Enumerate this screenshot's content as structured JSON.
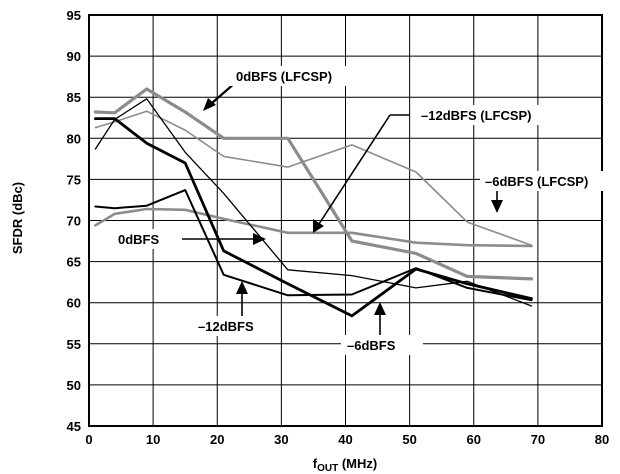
{
  "chart_data": {
    "type": "line",
    "xlabel": "f",
    "xlabel_sub": "OUT",
    "xlabel_unit": " (MHz)",
    "ylabel": "SFDR (dBc)",
    "xlim": [
      0,
      80
    ],
    "ylim": [
      45,
      95
    ],
    "xticks": [
      0,
      10,
      20,
      30,
      40,
      50,
      60,
      70,
      80
    ],
    "yticks": [
      45,
      50,
      55,
      60,
      65,
      70,
      75,
      80,
      85,
      90,
      95
    ],
    "grid": true,
    "series": [
      {
        "name": "0dBFS (LFCSP)",
        "color": "#8c8c8c",
        "width": 3.2,
        "x": [
          1,
          4,
          9,
          15,
          21,
          26,
          31,
          41,
          51,
          59,
          69
        ],
        "y": [
          83.2,
          83.1,
          86.0,
          83.2,
          80.0,
          80.0,
          80.0,
          67.5,
          66.0,
          63.2,
          62.9
        ]
      },
      {
        "name": "-6dBFS (LFCSP)",
        "color": "#8c8c8c",
        "width": 1.6,
        "x": [
          1,
          4,
          9,
          15,
          21,
          31,
          41,
          51,
          59,
          69
        ],
        "y": [
          81.3,
          82.0,
          83.3,
          81.0,
          77.8,
          76.5,
          79.2,
          75.9,
          69.8,
          67.0
        ]
      },
      {
        "name": "-12dBFS (LFCSP)",
        "color": "#8c8c8c",
        "width": 2.6,
        "x": [
          1,
          4,
          9,
          15,
          21,
          31,
          41,
          51,
          59,
          69
        ],
        "y": [
          69.4,
          70.8,
          71.4,
          71.3,
          70.2,
          68.5,
          68.5,
          67.3,
          67.0,
          66.9
        ]
      },
      {
        "name": "0dBFS",
        "color": "#000000",
        "width": 1.3,
        "x": [
          1,
          4,
          9,
          15,
          21,
          31,
          41,
          51,
          59,
          69
        ],
        "y": [
          78.7,
          82.3,
          84.8,
          78.3,
          73.3,
          64.0,
          63.3,
          61.8,
          62.6,
          59.6
        ]
      },
      {
        "name": "-6dBFS",
        "color": "#000000",
        "width": 2.8,
        "x": [
          1,
          4,
          9,
          15,
          21,
          31,
          41,
          51,
          59,
          69
        ],
        "y": [
          82.4,
          82.4,
          79.4,
          77.0,
          66.3,
          62.3,
          58.4,
          64.1,
          62.3,
          60.5
        ]
      },
      {
        "name": "-12dBFS",
        "color": "#000000",
        "width": 2.0,
        "x": [
          1,
          4,
          9,
          15,
          21,
          31,
          41,
          51,
          59,
          69
        ],
        "y": [
          71.7,
          71.5,
          71.8,
          73.7,
          63.4,
          60.9,
          61.0,
          64.2,
          61.8,
          60.3
        ]
      }
    ],
    "annotations": [
      {
        "text": "0dBFS (LFCSP)"
      },
      {
        "text": "–12dBFS (LFCSP)"
      },
      {
        "text": "–6dBFS (LFCSP)"
      },
      {
        "text": "0dBFS"
      },
      {
        "text": "–12dBFS"
      },
      {
        "text": "–6dBFS"
      }
    ]
  }
}
